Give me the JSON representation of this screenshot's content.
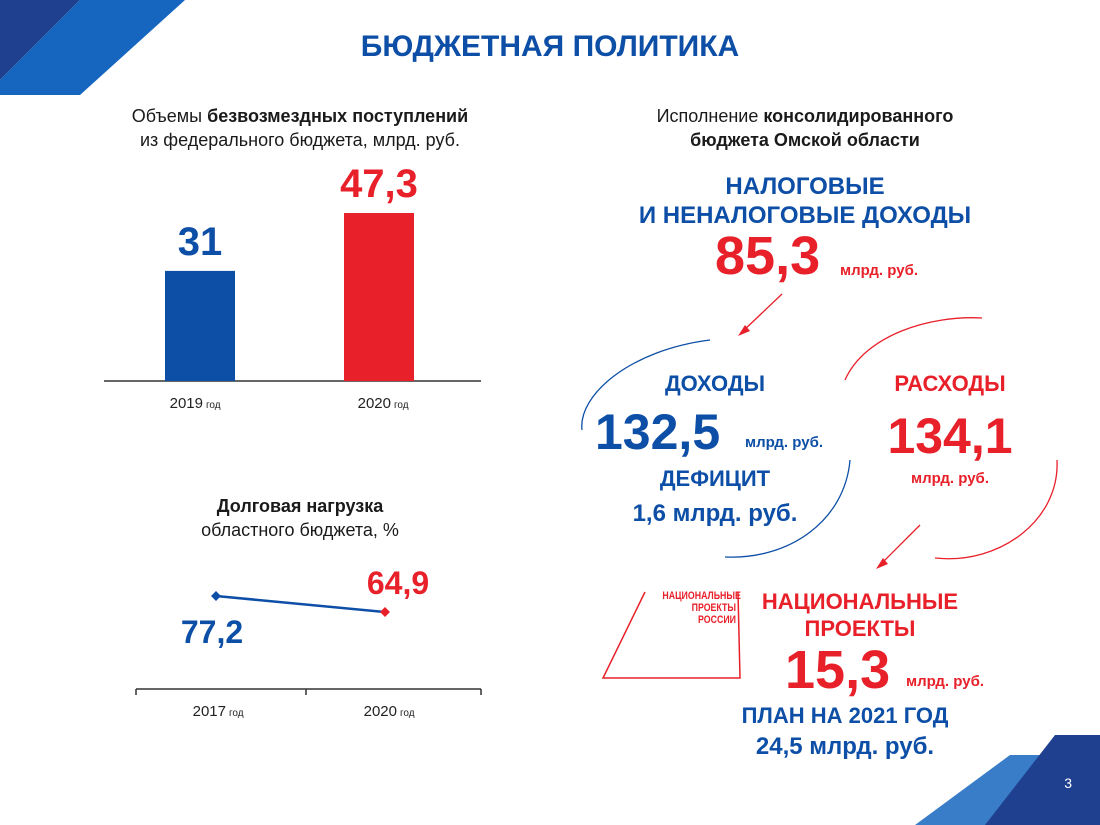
{
  "title": "БЮДЖЕТНАЯ ПОЛИТИКА",
  "page_number": "3",
  "colors": {
    "blue": "#0d4ea6",
    "red": "#e8202a",
    "navy": "#1f3f8f"
  },
  "transfers": {
    "caption_pre": "Объемы ",
    "caption_bold": "безвозмездных поступлений",
    "caption_line2": "из федерального бюджета, млрд. руб."
  },
  "debt": {
    "caption_bold": "Долговая нагрузка",
    "caption_line2": "областного бюджета, %"
  },
  "chart_data": [
    {
      "type": "bar",
      "categories": [
        "2019",
        "2020"
      ],
      "category_suffix": "год",
      "values": [
        31,
        47.3
      ],
      "value_labels": [
        "31",
        "47,3"
      ],
      "colors": [
        "#0d4ea6",
        "#e8202a"
      ],
      "ylim": [
        0,
        47.3
      ]
    },
    {
      "type": "line",
      "categories": [
        "2017",
        "2020"
      ],
      "category_suffix": "год",
      "values": [
        77.2,
        64.9
      ],
      "value_labels": [
        "77,2",
        "64,9"
      ],
      "colors": [
        "#0d4ea6",
        "#e8202a"
      ]
    }
  ],
  "consolidated": {
    "caption_pre": "Исполнение ",
    "caption_bold1": "консолидированного",
    "caption_bold2": "бюджета Омской области",
    "tax_line1": "НАЛОГОВЫЕ",
    "tax_line2": "И НЕНАЛОГОВЫЕ ДОХОДЫ",
    "tax_value": "85,3",
    "unit": "млрд. руб.",
    "income_label": "ДОХОДЫ",
    "income_value": "132,5",
    "deficit_label": "ДЕФИЦИТ",
    "deficit_value": "1,6 млрд. руб.",
    "expense_label": "РАСХОДЫ",
    "expense_value": "134,1",
    "np_logo_line1": "НАЦИОНАЛЬНЫЕ",
    "np_logo_line2": "ПРОЕКТЫ",
    "np_logo_line3": "РОССИИ",
    "np_line1": "НАЦИОНАЛЬНЫЕ",
    "np_line2": "ПРОЕКТЫ",
    "np_value": "15,3",
    "plan_label": "ПЛАН НА 2021 ГОД",
    "plan_value": "24,5 млрд. руб."
  }
}
